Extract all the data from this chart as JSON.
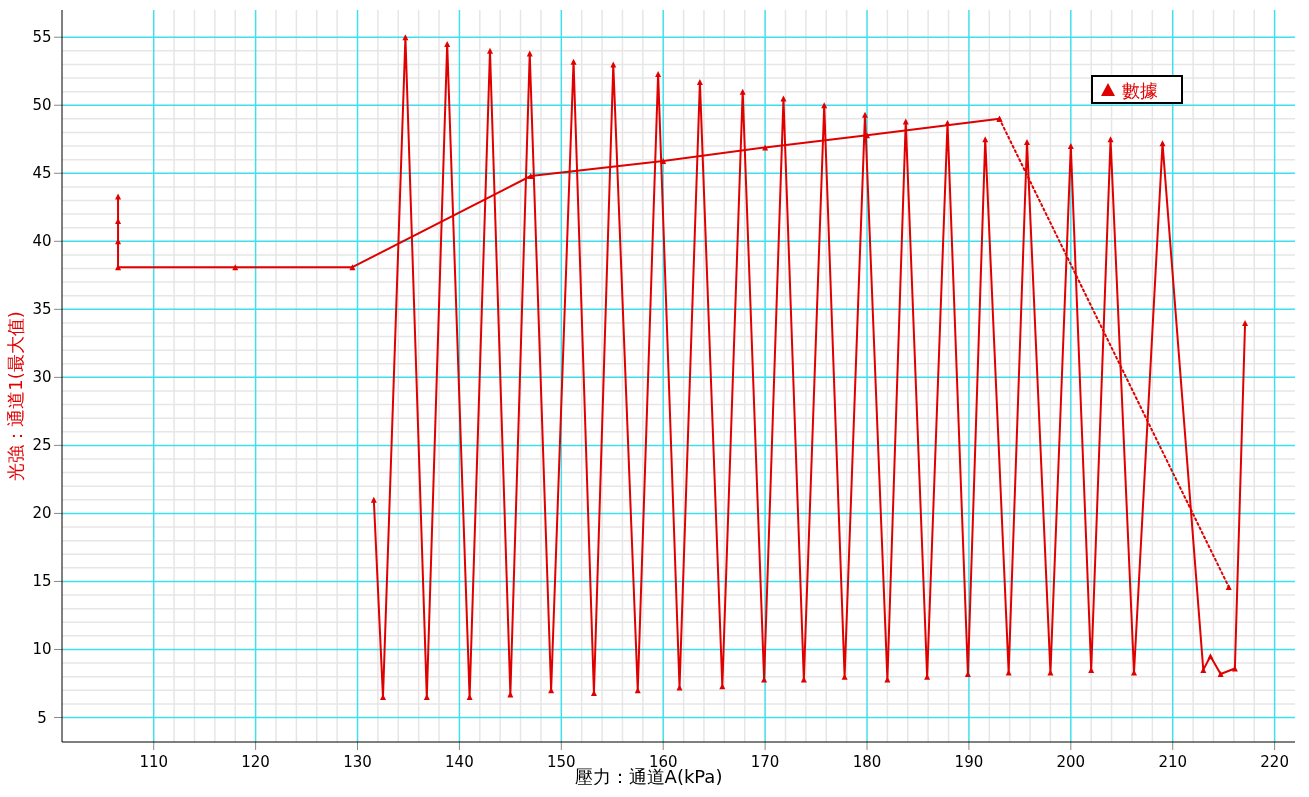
{
  "chart_data": {
    "type": "line",
    "xlabel": "壓力：通道A(kPa)",
    "ylabel": "光強：通道1(最大值)",
    "xlim": [
      101,
      222
    ],
    "ylim": [
      3.2,
      57
    ],
    "xticks": [
      110,
      120,
      130,
      140,
      150,
      160,
      170,
      180,
      190,
      200,
      210,
      220
    ],
    "yticks": [
      5,
      10,
      15,
      20,
      25,
      30,
      35,
      40,
      45,
      50,
      55
    ],
    "grid": true,
    "legend": "top right",
    "marker": "triangle",
    "series": [
      {
        "name": "數據",
        "color": "#e00000",
        "x": [
          131.6,
          132.5,
          134.7,
          136.8,
          138.8,
          141,
          143,
          145,
          146.9,
          149,
          151.2,
          153.2,
          155.1,
          157.5,
          159.5,
          161.6,
          163.6,
          165.8,
          167.8,
          169.9,
          171.8,
          173.8,
          175.8,
          177.8,
          179.8,
          182,
          183.8,
          185.9,
          187.9,
          189.9,
          191.6,
          193.9,
          195.7,
          198,
          200,
          202,
          203.9,
          206.2,
          209,
          213,
          213.7,
          214.7,
          216.1,
          217.1
        ],
        "values": [
          21,
          6.5,
          55,
          6.5,
          54.5,
          6.5,
          54,
          6.7,
          53.8,
          7,
          53.2,
          6.8,
          53,
          7,
          52.3,
          7.2,
          51.7,
          7.3,
          51,
          7.8,
          50.5,
          7.8,
          50,
          8,
          49.3,
          7.8,
          48.8,
          8,
          48.7,
          8.2,
          47.5,
          8.3,
          47.3,
          8.3,
          47,
          8.5,
          47.5,
          8.3,
          47.2,
          8.5,
          9.5,
          8.2,
          8.6,
          34
        ]
      },
      {
        "color": "#e00000",
        "line_style": "solid",
        "x": [
          106.5,
          106.5,
          106.5,
          106.5,
          118,
          129.5,
          147,
          160,
          170,
          180,
          193
        ],
        "values": [
          43.3,
          41.5,
          40,
          38.1,
          38.1,
          38.1,
          44.8,
          45.9,
          46.9,
          47.8,
          49
        ]
      },
      {
        "color": "#e00000",
        "line_style": "dotted",
        "x": [
          193,
          215.5
        ],
        "values": [
          49,
          14.6
        ]
      }
    ]
  }
}
